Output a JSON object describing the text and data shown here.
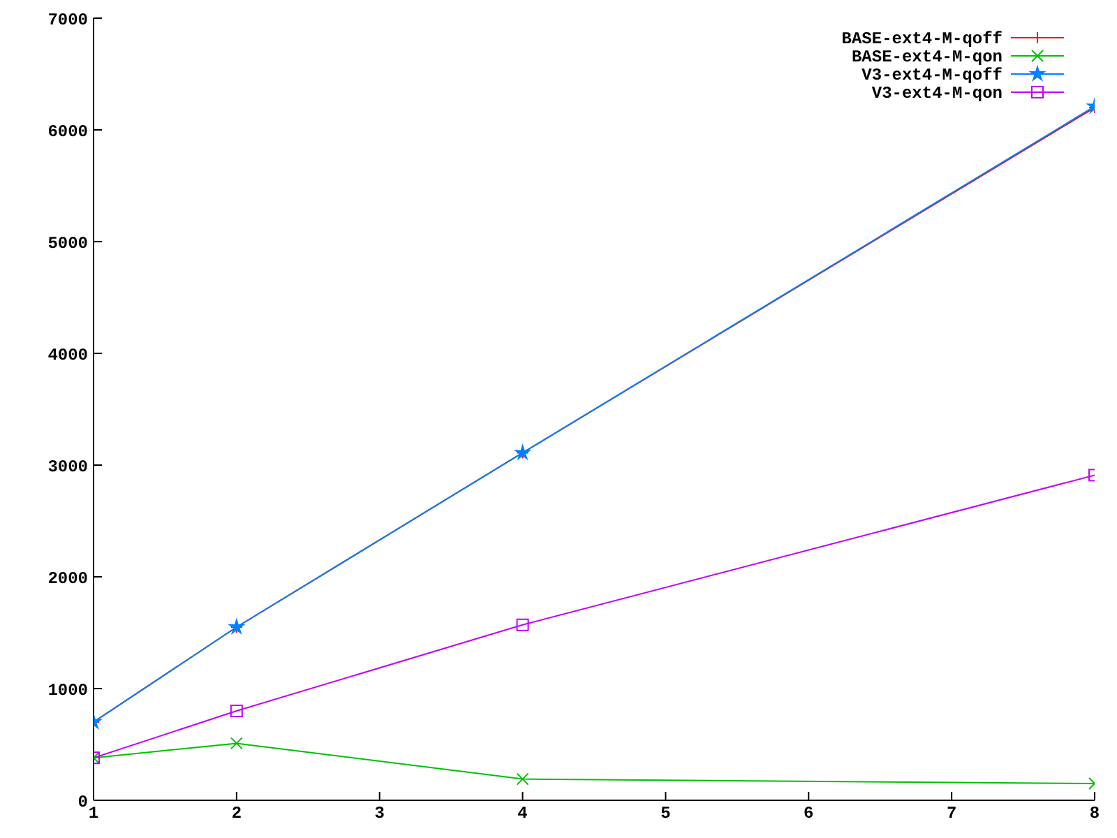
{
  "chart_data": {
    "type": "line",
    "x": [
      1,
      2,
      4,
      8
    ],
    "series": [
      {
        "name": "BASE-ext4-M-qoff",
        "color": "#ff0000",
        "marker": "cross",
        "values": [
          700,
          1550,
          3110,
          6200
        ]
      },
      {
        "name": "BASE-ext4-M-qon",
        "color": "#00c000",
        "marker": "x",
        "values": [
          380,
          510,
          190,
          150
        ]
      },
      {
        "name": "V3-ext4-M-qoff",
        "color": "#0080ff",
        "marker": "star",
        "values": [
          700,
          1550,
          3110,
          6210
        ]
      },
      {
        "name": "V3-ext4-M-qon",
        "color": "#c000ff",
        "marker": "square",
        "values": [
          380,
          800,
          1570,
          2910
        ]
      }
    ],
    "xlim": [
      1,
      8
    ],
    "xticks": [
      1,
      2,
      3,
      4,
      5,
      6,
      7,
      8
    ],
    "ylim": [
      0,
      7000
    ],
    "yticks": [
      0,
      1000,
      2000,
      3000,
      4000,
      5000,
      6000,
      7000
    ],
    "grid": false,
    "legend": "top right",
    "line_style": "solid"
  }
}
